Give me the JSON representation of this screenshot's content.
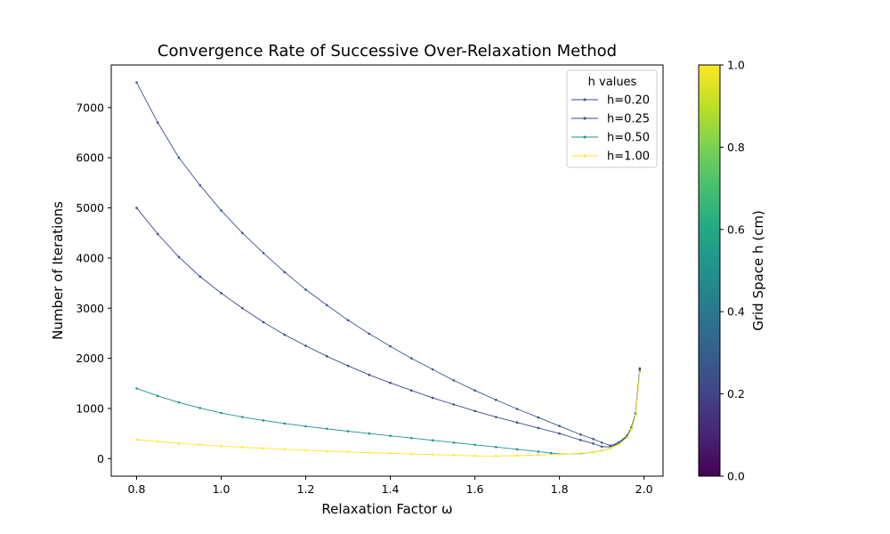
{
  "chart_data": {
    "type": "line",
    "title": "Convergence Rate of Successive Over-Relaxation Method",
    "xlabel": "Relaxation Factor ω",
    "ylabel": "Number of Iterations",
    "xlim": [
      0.74,
      2.045
    ],
    "ylim": [
      -350,
      7850
    ],
    "xticks": [
      0.8,
      1.0,
      1.2,
      1.4,
      1.6,
      1.8,
      2.0
    ],
    "xtick_labels": [
      "0.8",
      "1.0",
      "1.2",
      "1.4",
      "1.6",
      "1.8",
      "2.0"
    ],
    "yticks": [
      0,
      1000,
      2000,
      3000,
      4000,
      5000,
      6000,
      7000
    ],
    "ytick_labels": [
      "0",
      "1000",
      "2000",
      "3000",
      "4000",
      "5000",
      "6000",
      "7000"
    ],
    "grid": false,
    "legend": {
      "title": "h values",
      "position": "top-right"
    },
    "series": [
      {
        "name": "h=0.20",
        "color": "#3b528b",
        "x": [
          0.8,
          0.85,
          0.9,
          0.95,
          1.0,
          1.05,
          1.1,
          1.15,
          1.2,
          1.25,
          1.3,
          1.35,
          1.4,
          1.45,
          1.5,
          1.55,
          1.6,
          1.65,
          1.7,
          1.75,
          1.8,
          1.85,
          1.88,
          1.9,
          1.92,
          1.94,
          1.96,
          1.97,
          1.98,
          1.99
        ],
        "y": [
          7500,
          6700,
          6000,
          5450,
          4950,
          4500,
          4100,
          3720,
          3370,
          3060,
          2760,
          2490,
          2240,
          2000,
          1780,
          1560,
          1360,
          1170,
          990,
          820,
          650,
          480,
          390,
          320,
          260,
          320,
          460,
          620,
          900,
          1800
        ]
      },
      {
        "name": "h=0.25",
        "color": "#3e4a89",
        "x": [
          0.8,
          0.85,
          0.9,
          0.95,
          1.0,
          1.05,
          1.1,
          1.15,
          1.2,
          1.25,
          1.3,
          1.35,
          1.4,
          1.45,
          1.5,
          1.55,
          1.6,
          1.65,
          1.7,
          1.75,
          1.8,
          1.85,
          1.88,
          1.9,
          1.92,
          1.94,
          1.96,
          1.97,
          1.98,
          1.99
        ],
        "y": [
          5000,
          4480,
          4020,
          3630,
          3300,
          3000,
          2720,
          2470,
          2250,
          2040,
          1850,
          1670,
          1510,
          1360,
          1210,
          1080,
          950,
          830,
          720,
          610,
          500,
          370,
          300,
          240,
          230,
          310,
          450,
          620,
          900,
          1780
        ]
      },
      {
        "name": "h=0.50",
        "color": "#21918c",
        "x": [
          0.8,
          0.85,
          0.9,
          0.95,
          1.0,
          1.05,
          1.1,
          1.15,
          1.2,
          1.25,
          1.3,
          1.35,
          1.4,
          1.45,
          1.5,
          1.55,
          1.6,
          1.65,
          1.7,
          1.75,
          1.78,
          1.8,
          1.85,
          1.88,
          1.9,
          1.92,
          1.94,
          1.96,
          1.97,
          1.98,
          1.99
        ],
        "y": [
          1400,
          1250,
          1120,
          1010,
          910,
          830,
          760,
          700,
          645,
          595,
          545,
          500,
          455,
          410,
          365,
          320,
          275,
          230,
          185,
          140,
          110,
          90,
          100,
          130,
          160,
          210,
          290,
          430,
          600,
          880,
          1740
        ]
      },
      {
        "name": "h=1.00",
        "color": "#fde725",
        "x": [
          0.8,
          0.85,
          0.9,
          0.95,
          1.0,
          1.05,
          1.1,
          1.15,
          1.2,
          1.25,
          1.3,
          1.35,
          1.4,
          1.45,
          1.5,
          1.55,
          1.6,
          1.65,
          1.7,
          1.75,
          1.8,
          1.85,
          1.88,
          1.9,
          1.92,
          1.94,
          1.96,
          1.97,
          1.98,
          1.99
        ],
        "y": [
          380,
          340,
          305,
          275,
          250,
          225,
          205,
          185,
          165,
          148,
          132,
          118,
          105,
          92,
          80,
          68,
          55,
          50,
          58,
          70,
          85,
          105,
          130,
          160,
          210,
          280,
          420,
          580,
          860,
          1720
        ]
      }
    ],
    "colorbar": {
      "label": "Grid Space h (cm)",
      "range": [
        0.0,
        1.0
      ],
      "colormap": "viridis",
      "ticks": [
        0.0,
        0.2,
        0.4,
        0.6,
        0.8,
        1.0
      ],
      "tick_labels": [
        "0.0",
        "0.2",
        "0.4",
        "0.6",
        "0.8",
        "1.0"
      ]
    }
  }
}
